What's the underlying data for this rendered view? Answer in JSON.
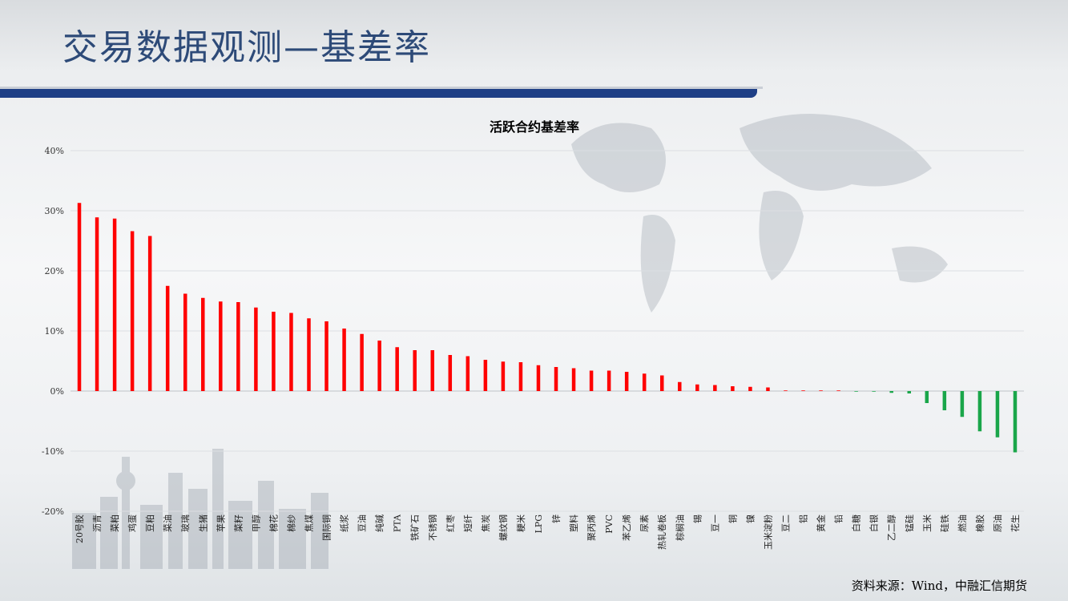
{
  "header": {
    "title": "交易数据观测—基差率"
  },
  "footer": {
    "source": "资料来源：Wind，中融汇信期货"
  },
  "colors": {
    "positive": "#ff0000",
    "negative": "#1aa64a",
    "title_bar": "#1e3f86",
    "title_text": "#2d4a78"
  },
  "chart_data": {
    "type": "bar",
    "title": "活跃合约基差率",
    "xlabel": "",
    "ylabel": "",
    "ylim": [
      -20,
      40
    ],
    "yticks": [
      40,
      30,
      20,
      10,
      0,
      -10,
      -20
    ],
    "ytick_labels": [
      "40%",
      "30%",
      "20%",
      "10%",
      "0%",
      "-10%",
      "-20%"
    ],
    "grid": true,
    "legend": "none",
    "categories": [
      "20号胶",
      "沥青",
      "菜粕",
      "鸡蛋",
      "豆粕",
      "菜油",
      "玻璃",
      "生猪",
      "苹果",
      "菜籽",
      "甲醇",
      "棉花",
      "棉纱",
      "焦煤",
      "国际铜",
      "纸浆",
      "豆油",
      "纯碱",
      "PTA",
      "铁矿石",
      "不锈钢",
      "红枣",
      "短纤",
      "焦炭",
      "螺纹钢",
      "粳米",
      "LPG",
      "锌",
      "塑料",
      "聚丙烯",
      "PVC",
      "苯乙烯",
      "尿素",
      "热轧卷板",
      "棕榈油",
      "锡",
      "豆一",
      "铜",
      "镍",
      "玉米淀粉",
      "豆二",
      "铝",
      "黄金",
      "铅",
      "白糖",
      "白银",
      "乙二醇",
      "锰硅",
      "玉米",
      "硅铁",
      "燃油",
      "橡胶",
      "原油",
      "花生"
    ],
    "values": [
      31.3,
      28.9,
      28.7,
      26.6,
      25.8,
      17.5,
      16.2,
      15.5,
      14.9,
      14.8,
      13.9,
      13.2,
      13.0,
      12.1,
      11.6,
      10.4,
      9.5,
      8.4,
      7.3,
      6.8,
      6.8,
      6.0,
      5.8,
      5.2,
      4.9,
      4.8,
      4.3,
      4.0,
      3.8,
      3.4,
      3.4,
      3.2,
      2.9,
      2.6,
      1.5,
      1.1,
      1.0,
      0.8,
      0.7,
      0.6,
      0.1,
      0.1,
      0.1,
      0.1,
      -0.1,
      -0.1,
      -0.3,
      -0.4,
      -2.0,
      -3.2,
      -4.3,
      -6.7,
      -7.7,
      -10.2
    ]
  }
}
